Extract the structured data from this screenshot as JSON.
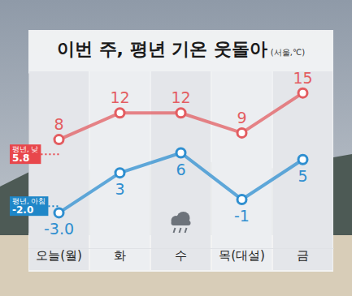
{
  "chart_data": {
    "type": "line",
    "title": "이번 주, 평년 기온 웃돌아",
    "subtitle": "(서울,℃)",
    "categories": [
      "오늘(월)",
      "화",
      "수",
      "목(대설)",
      "금"
    ],
    "series": [
      {
        "color": "#e35d61",
        "marker": "circle",
        "values": [
          8,
          12,
          12,
          9,
          15
        ]
      },
      {
        "color": "#2f8fd0",
        "marker": "circle",
        "values": [
          -3,
          3,
          6,
          -1,
          5
        ],
        "value_labels": [
          "-3.0",
          "3",
          "6",
          "-1",
          "5"
        ]
      }
    ],
    "reference_lines": [
      {
        "label": "평년, 낮",
        "value": 5.8,
        "color": "#e8474c",
        "line_style": "dotted"
      },
      {
        "label": "평년, 아침",
        "value": -2,
        "value_label": "-2.0",
        "color": "#1f87c8",
        "line_style": "dotted"
      }
    ],
    "ylim": [
      -6,
      18
    ],
    "yticks": [],
    "data_labels": true,
    "tick_labels": "x",
    "grid": false
  }
}
